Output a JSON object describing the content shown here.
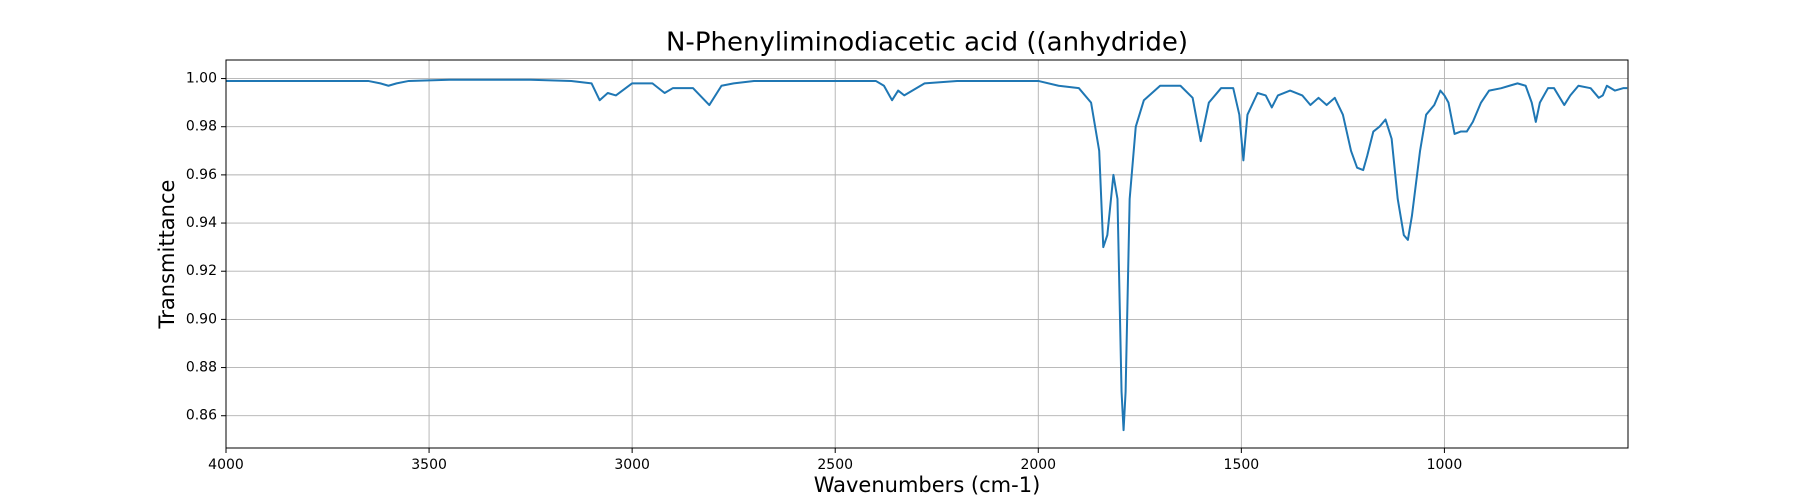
{
  "chart_data": {
    "type": "line",
    "title": "N-Phenyliminodiacetic acid ((anhydride)",
    "x_label": "Wavenumbers (cm-1)",
    "y_label": "Transmittance",
    "x": [
      4000,
      3900,
      3800,
      3700,
      3650,
      3620,
      3600,
      3580,
      3550,
      3450,
      3350,
      3250,
      3150,
      3100,
      3080,
      3060,
      3040,
      3000,
      2950,
      2920,
      2900,
      2850,
      2810,
      2780,
      2750,
      2700,
      2600,
      2500,
      2400,
      2380,
      2360,
      2345,
      2330,
      2280,
      2200,
      2100,
      2000,
      1950,
      1900,
      1870,
      1850,
      1840,
      1830,
      1815,
      1805,
      1795,
      1790,
      1785,
      1775,
      1760,
      1740,
      1700,
      1650,
      1620,
      1600,
      1580,
      1550,
      1520,
      1505,
      1495,
      1485,
      1460,
      1440,
      1425,
      1410,
      1380,
      1350,
      1330,
      1310,
      1290,
      1270,
      1250,
      1230,
      1215,
      1200,
      1190,
      1175,
      1160,
      1145,
      1130,
      1115,
      1100,
      1090,
      1080,
      1060,
      1045,
      1025,
      1010,
      1000,
      990,
      975,
      960,
      945,
      930,
      910,
      890,
      860,
      840,
      820,
      800,
      785,
      775,
      765,
      745,
      730,
      705,
      690,
      670,
      640,
      620,
      610,
      600,
      580,
      560,
      550
    ],
    "series": [
      {
        "name": "Transmittance",
        "color": "#1f77b4",
        "values": [
          0.999,
          0.999,
          0.999,
          0.999,
          0.999,
          0.998,
          0.997,
          0.998,
          0.999,
          0.9995,
          0.9995,
          0.9995,
          0.999,
          0.998,
          0.991,
          0.994,
          0.993,
          0.998,
          0.998,
          0.994,
          0.996,
          0.996,
          0.989,
          0.997,
          0.998,
          0.999,
          0.999,
          0.999,
          0.999,
          0.997,
          0.991,
          0.995,
          0.993,
          0.998,
          0.999,
          0.999,
          0.999,
          0.997,
          0.996,
          0.99,
          0.97,
          0.93,
          0.935,
          0.96,
          0.95,
          0.87,
          0.854,
          0.87,
          0.95,
          0.98,
          0.991,
          0.997,
          0.997,
          0.992,
          0.974,
          0.99,
          0.996,
          0.996,
          0.985,
          0.966,
          0.985,
          0.994,
          0.993,
          0.988,
          0.993,
          0.995,
          0.993,
          0.989,
          0.992,
          0.989,
          0.992,
          0.985,
          0.97,
          0.963,
          0.962,
          0.968,
          0.978,
          0.98,
          0.983,
          0.975,
          0.95,
          0.935,
          0.933,
          0.943,
          0.97,
          0.985,
          0.989,
          0.995,
          0.993,
          0.99,
          0.977,
          0.978,
          0.978,
          0.982,
          0.99,
          0.995,
          0.996,
          0.997,
          0.998,
          0.997,
          0.99,
          0.982,
          0.99,
          0.996,
          0.996,
          0.989,
          0.993,
          0.997,
          0.996,
          0.992,
          0.993,
          0.997,
          0.995,
          0.996,
          0.996
        ]
      }
    ],
    "xlim": [
      4000,
      548
    ],
    "xticks": [
      4000,
      3500,
      3000,
      2500,
      2000,
      1500,
      1000
    ],
    "ylim": [
      0.8466,
      1.0077
    ],
    "yticks": [
      {
        "value": 0.86,
        "label": "0.86"
      },
      {
        "value": 0.88,
        "label": "0.88"
      },
      {
        "value": 0.9,
        "label": "0.90"
      },
      {
        "value": 0.92,
        "label": "0.92"
      },
      {
        "value": 0.94,
        "label": "0.94"
      },
      {
        "value": 0.96,
        "label": "0.96"
      },
      {
        "value": 0.98,
        "label": "0.98"
      },
      {
        "value": 1.0,
        "label": "1.00"
      }
    ],
    "grid": true
  }
}
